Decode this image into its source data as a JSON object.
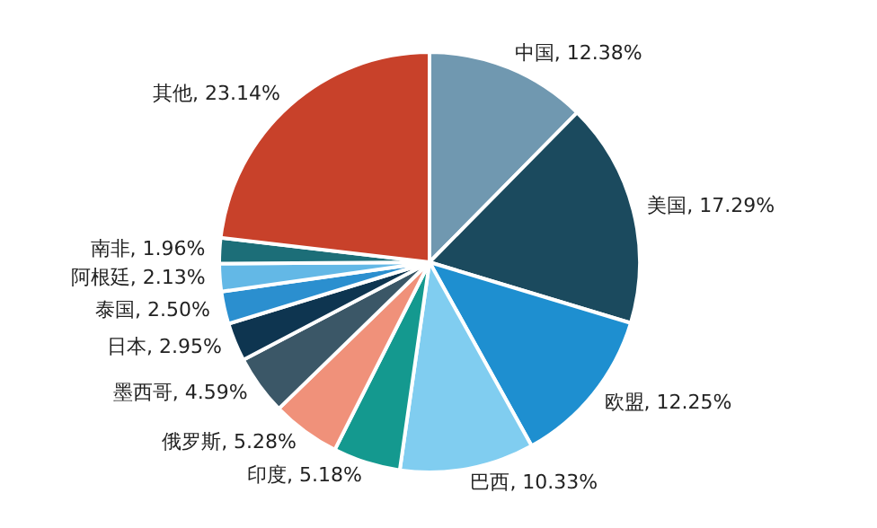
{
  "chart_data": {
    "type": "pie",
    "categories": [
      "中国",
      "美国",
      "欧盟",
      "巴西",
      "印度",
      "俄罗斯",
      "墨西哥",
      "日本",
      "泰国",
      "阿根廷",
      "南非",
      "其他"
    ],
    "values": [
      12.38,
      17.29,
      12.25,
      10.33,
      5.18,
      5.28,
      4.59,
      2.95,
      2.5,
      2.13,
      1.96,
      23.14
    ],
    "value_labels": [
      "12.38%",
      "17.29%",
      "12.25%",
      "10.33%",
      "5.18%",
      "5.28%",
      "4.59%",
      "2.95%",
      "2.50%",
      "2.13%",
      "1.96%",
      "23.14%"
    ],
    "colors": [
      "#7098b0",
      "#1b4a5e",
      "#1e8fd0",
      "#80cdf0",
      "#14998f",
      "#f0917a",
      "#3b5767",
      "#0e3550",
      "#2b8fcf",
      "#63b8e6",
      "#1c6e78",
      "#c8412a"
    ],
    "legend": false
  }
}
